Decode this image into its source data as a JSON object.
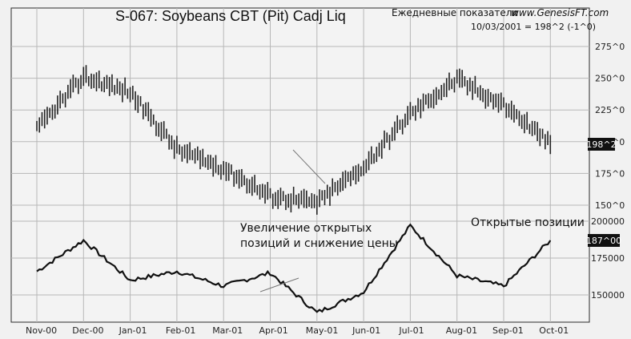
{
  "header": {
    "title": "S-067:  Soybeans CBT (Pit) Cadj Liq",
    "period_label": "Ежедневные показатели",
    "website": "www.GenesisFT.com",
    "last_value": "10/03/2001 = 198^2 (-1^0)"
  },
  "chart_data": [
    {
      "type": "line",
      "title": "S-067:  Soybeans CBT (Pit) Cadj Liq",
      "categories": [
        "Nov-00",
        "Dec-00",
        "Jan-01",
        "Feb-01",
        "Mar-01",
        "Apr-01",
        "May-01",
        "Jun-01",
        "Jul-01",
        "Aug-01",
        "Sep-01",
        "Oct-01"
      ],
      "series": [
        {
          "x": [
            "Nov-00",
            "Dec-00",
            "Jan-01",
            "Feb-01",
            "Mar-01",
            "Apr-01",
            "May-01",
            "Jun-01",
            "Jul-01",
            "Aug-01",
            "Sep-01",
            "Oct-01"
          ],
          "values": [
            210,
            251,
            239,
            194,
            179,
            157,
            152,
            180,
            222,
            249,
            229,
            198.25
          ]
        }
      ],
      "ylim": [
        150,
        275
      ],
      "yticks": [
        "150^0",
        "175^0",
        "200^0",
        "225^0",
        "250^0",
        "275^0"
      ],
      "last_label": "198^2",
      "grid": true
    },
    {
      "type": "line",
      "categories": [
        "Nov-00",
        "Dec-00",
        "Jan-01",
        "Feb-01",
        "Mar-01",
        "Apr-01",
        "May-01",
        "Jun-01",
        "Jul-01",
        "Aug-01",
        "Sep-01",
        "Oct-01"
      ],
      "series": [
        {
          "name": "Открытые позиции",
          "x": [
            "Nov-00",
            "Dec-00",
            "Jan-01",
            "Feb-01",
            "Mar-01",
            "Apr-01",
            "May-01",
            "Jun-01",
            "Jul-01",
            "Aug-01",
            "Sep-01",
            "Oct-01"
          ],
          "values": [
            166000,
            187000,
            160000,
            166000,
            156000,
            165000,
            138000,
            152000,
            197000,
            163000,
            156000,
            187000
          ]
        }
      ],
      "ylim": [
        140000,
        200000
      ],
      "yticks": [
        "150000",
        "175000",
        "200000"
      ],
      "last_label": "187^00",
      "grid": true
    }
  ],
  "annotations": {
    "oi_note_line1": "Увеличение открытых",
    "oi_note_line2": "позиций и снижение цены",
    "oi_series_label": "Открытые позиции"
  }
}
